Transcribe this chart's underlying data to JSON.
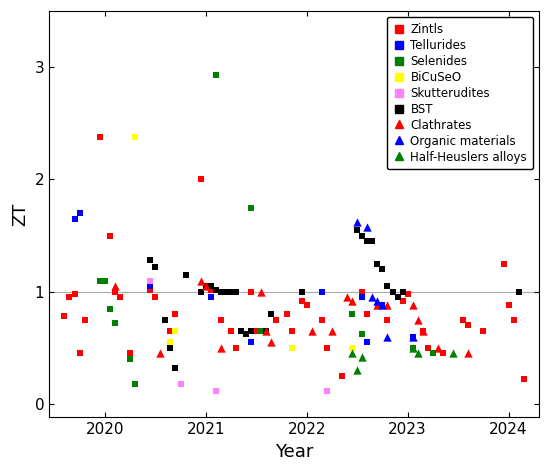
{
  "xlabel": "Year",
  "ylabel": "ZT",
  "xlim": [
    2019.45,
    2024.3
  ],
  "ylim": [
    -0.12,
    3.5
  ],
  "xticks": [
    2020,
    2021,
    2022,
    2023,
    2024
  ],
  "yticks": [
    0,
    1,
    2,
    3
  ],
  "hline_y": 1.0,
  "hline_color": "#aaaaaa",
  "series": [
    {
      "label": "Zintls",
      "color": "#ff0000",
      "marker": "s",
      "markersize": 5,
      "points": [
        [
          2019.6,
          0.78
        ],
        [
          2019.65,
          0.95
        ],
        [
          2019.7,
          0.98
        ],
        [
          2019.75,
          0.45
        ],
        [
          2019.8,
          0.75
        ],
        [
          2019.95,
          2.38
        ],
        [
          2020.05,
          1.5
        ],
        [
          2020.1,
          1.0
        ],
        [
          2020.15,
          0.95
        ],
        [
          2020.25,
          0.45
        ],
        [
          2020.45,
          1.02
        ],
        [
          2020.5,
          0.95
        ],
        [
          2020.65,
          0.65
        ],
        [
          2020.7,
          0.8
        ],
        [
          2020.95,
          2.0
        ],
        [
          2021.05,
          1.02
        ],
        [
          2021.15,
          0.75
        ],
        [
          2021.25,
          0.65
        ],
        [
          2021.3,
          0.5
        ],
        [
          2021.45,
          1.0
        ],
        [
          2021.5,
          0.65
        ],
        [
          2021.65,
          0.8
        ],
        [
          2021.7,
          0.75
        ],
        [
          2021.8,
          0.8
        ],
        [
          2021.85,
          0.65
        ],
        [
          2021.95,
          0.92
        ],
        [
          2022.0,
          0.88
        ],
        [
          2022.15,
          0.75
        ],
        [
          2022.2,
          0.5
        ],
        [
          2022.35,
          0.25
        ],
        [
          2022.55,
          1.0
        ],
        [
          2022.6,
          0.8
        ],
        [
          2022.75,
          0.88
        ],
        [
          2022.8,
          0.75
        ],
        [
          2022.95,
          0.92
        ],
        [
          2023.0,
          0.98
        ],
        [
          2023.15,
          0.65
        ],
        [
          2023.2,
          0.5
        ],
        [
          2023.35,
          0.45
        ],
        [
          2023.55,
          0.75
        ],
        [
          2023.6,
          0.7
        ],
        [
          2023.75,
          0.65
        ],
        [
          2023.95,
          1.25
        ],
        [
          2024.0,
          0.88
        ],
        [
          2024.05,
          0.75
        ],
        [
          2024.15,
          0.22
        ]
      ]
    },
    {
      "label": "Tellurides",
      "color": "#0000ff",
      "marker": "s",
      "markersize": 5,
      "points": [
        [
          2019.7,
          1.65
        ],
        [
          2019.75,
          1.7
        ],
        [
          2020.45,
          1.05
        ],
        [
          2020.95,
          1.0
        ],
        [
          2021.05,
          0.95
        ],
        [
          2021.45,
          0.55
        ],
        [
          2022.15,
          1.0
        ],
        [
          2022.55,
          0.95
        ],
        [
          2022.6,
          0.55
        ],
        [
          2022.75,
          0.88
        ],
        [
          2023.05,
          0.6
        ]
      ]
    },
    {
      "label": "Selenides",
      "color": "#008000",
      "marker": "s",
      "markersize": 5,
      "points": [
        [
          2019.95,
          1.1
        ],
        [
          2020.0,
          1.1
        ],
        [
          2020.05,
          0.85
        ],
        [
          2020.1,
          0.72
        ],
        [
          2020.25,
          0.4
        ],
        [
          2020.3,
          0.18
        ],
        [
          2021.1,
          2.93
        ],
        [
          2021.45,
          1.75
        ],
        [
          2021.55,
          0.65
        ],
        [
          2022.45,
          0.8
        ],
        [
          2022.55,
          0.62
        ],
        [
          2023.05,
          0.5
        ],
        [
          2023.25,
          0.45
        ]
      ]
    },
    {
      "label": "BiCuSeO",
      "color": "#ffff00",
      "marker": "s",
      "markersize": 5,
      "points": [
        [
          2020.3,
          2.38
        ],
        [
          2020.65,
          0.55
        ],
        [
          2020.7,
          0.65
        ],
        [
          2021.85,
          0.5
        ],
        [
          2022.45,
          0.5
        ]
      ]
    },
    {
      "label": "Skutterudites",
      "color": "#ff80ff",
      "marker": "s",
      "markersize": 5,
      "points": [
        [
          2020.45,
          1.1
        ],
        [
          2020.75,
          0.18
        ],
        [
          2021.1,
          0.12
        ],
        [
          2022.2,
          0.12
        ]
      ]
    },
    {
      "label": "BST",
      "color": "#000000",
      "marker": "s",
      "markersize": 5,
      "points": [
        [
          2020.45,
          1.28
        ],
        [
          2020.5,
          1.22
        ],
        [
          2020.6,
          0.75
        ],
        [
          2020.65,
          0.5
        ],
        [
          2020.7,
          0.32
        ],
        [
          2020.8,
          1.15
        ],
        [
          2020.95,
          1.0
        ],
        [
          2021.0,
          1.05
        ],
        [
          2021.05,
          1.05
        ],
        [
          2021.1,
          1.02
        ],
        [
          2021.15,
          1.0
        ],
        [
          2021.2,
          1.0
        ],
        [
          2021.25,
          1.0
        ],
        [
          2021.3,
          1.0
        ],
        [
          2021.35,
          0.65
        ],
        [
          2021.4,
          0.62
        ],
        [
          2021.45,
          0.65
        ],
        [
          2021.6,
          0.65
        ],
        [
          2021.65,
          0.8
        ],
        [
          2021.95,
          1.0
        ],
        [
          2022.5,
          1.55
        ],
        [
          2022.55,
          1.5
        ],
        [
          2022.6,
          1.45
        ],
        [
          2022.65,
          1.45
        ],
        [
          2022.7,
          1.25
        ],
        [
          2022.75,
          1.2
        ],
        [
          2022.8,
          1.05
        ],
        [
          2022.85,
          1.0
        ],
        [
          2022.9,
          0.95
        ],
        [
          2022.95,
          1.0
        ],
        [
          2024.1,
          1.0
        ]
      ]
    },
    {
      "label": "Clathrates",
      "color": "#ff0000",
      "marker": "^",
      "markersize": 6,
      "points": [
        [
          2020.1,
          1.05
        ],
        [
          2020.55,
          0.45
        ],
        [
          2020.95,
          1.1
        ],
        [
          2021.0,
          1.05
        ],
        [
          2021.15,
          0.5
        ],
        [
          2021.55,
          1.0
        ],
        [
          2021.6,
          0.65
        ],
        [
          2021.65,
          0.55
        ],
        [
          2022.05,
          0.65
        ],
        [
          2022.25,
          0.65
        ],
        [
          2022.4,
          0.95
        ],
        [
          2022.45,
          0.92
        ],
        [
          2022.7,
          0.88
        ],
        [
          2022.8,
          0.88
        ],
        [
          2023.05,
          0.88
        ],
        [
          2023.1,
          0.75
        ],
        [
          2023.15,
          0.65
        ],
        [
          2023.3,
          0.5
        ],
        [
          2023.6,
          0.45
        ]
      ]
    },
    {
      "label": "Organic materials",
      "color": "#0000ff",
      "marker": "^",
      "markersize": 6,
      "points": [
        [
          2022.5,
          1.62
        ],
        [
          2022.6,
          1.58
        ],
        [
          2022.65,
          0.95
        ],
        [
          2022.7,
          0.92
        ],
        [
          2022.75,
          0.88
        ],
        [
          2022.8,
          0.6
        ],
        [
          2023.05,
          0.6
        ]
      ]
    },
    {
      "label": "Half-Heuslers alloys",
      "color": "#008000",
      "marker": "^",
      "markersize": 6,
      "points": [
        [
          2022.45,
          0.45
        ],
        [
          2022.5,
          0.3
        ],
        [
          2022.55,
          0.42
        ],
        [
          2023.05,
          0.5
        ],
        [
          2023.1,
          0.45
        ],
        [
          2023.45,
          0.45
        ]
      ]
    }
  ]
}
